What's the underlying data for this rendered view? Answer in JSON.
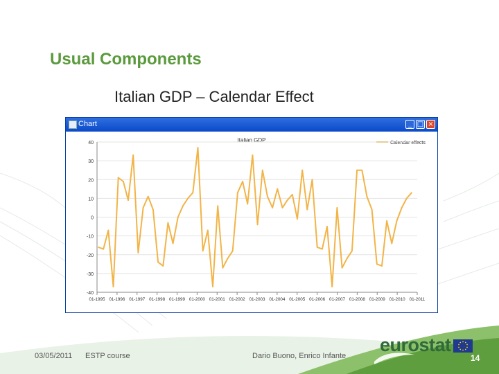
{
  "slide": {
    "title": "Usual Components",
    "subtitle": "Italian GDP – Calendar Effect"
  },
  "window": {
    "title": "Chart"
  },
  "footer": {
    "date": "03/05/2011",
    "course": "ESTP course",
    "authors": "Dario Buono, Enrico Infante",
    "page": "14",
    "logo": "eurostat"
  },
  "colors": {
    "title_green": "#5a9a3c",
    "series_line": "#f2b447",
    "window_border": "#0a3ea8"
  },
  "chart_data": {
    "type": "line",
    "title": "Italian GDP",
    "xlabel": "",
    "ylabel": "",
    "ylim": [
      -40,
      40
    ],
    "yticks": [
      -40,
      -30,
      -20,
      -10,
      0,
      10,
      20,
      30,
      40
    ],
    "ytick_labels": [
      "-40",
      "-30",
      "-20",
      "-10",
      "0",
      "10",
      "20",
      "30",
      "40"
    ],
    "xtick_labels": [
      "01-1995",
      "01-1996",
      "01-1997",
      "01-1998",
      "01-1999",
      "01-2000",
      "01-2001",
      "01-2002",
      "01-2003",
      "01-2004",
      "01-2005",
      "01-2006",
      "01-2007",
      "01-2008",
      "01-2009",
      "01-2010",
      "01-2011"
    ],
    "grid": true,
    "legend": "top-right",
    "series": [
      {
        "name": "Calendar effects",
        "color": "#f2b447",
        "x": [
          "1995-Q1",
          "1995-Q2",
          "1995-Q3",
          "1995-Q4",
          "1996-Q1",
          "1996-Q2",
          "1996-Q3",
          "1996-Q4",
          "1997-Q1",
          "1997-Q2",
          "1997-Q3",
          "1997-Q4",
          "1998-Q1",
          "1998-Q2",
          "1998-Q3",
          "1998-Q4",
          "1999-Q1",
          "1999-Q2",
          "1999-Q3",
          "1999-Q4",
          "2000-Q1",
          "2000-Q2",
          "2000-Q3",
          "2000-Q4",
          "2001-Q1",
          "2001-Q2",
          "2001-Q3",
          "2001-Q4",
          "2002-Q1",
          "2002-Q2",
          "2002-Q3",
          "2002-Q4",
          "2003-Q1",
          "2003-Q2",
          "2003-Q3",
          "2003-Q4",
          "2004-Q1",
          "2004-Q2",
          "2004-Q3",
          "2004-Q4",
          "2005-Q1",
          "2005-Q2",
          "2005-Q3",
          "2005-Q4",
          "2006-Q1",
          "2006-Q2",
          "2006-Q3",
          "2006-Q4",
          "2007-Q1",
          "2007-Q2",
          "2007-Q3",
          "2007-Q4",
          "2008-Q1",
          "2008-Q2",
          "2008-Q3",
          "2008-Q4",
          "2009-Q1",
          "2009-Q2",
          "2009-Q3",
          "2009-Q4",
          "2010-Q1",
          "2010-Q2",
          "2010-Q3",
          "2010-Q4"
        ],
        "values": [
          -16,
          -17,
          -7,
          -37,
          21,
          19,
          9,
          33,
          -19,
          5,
          11,
          4,
          -24,
          -26,
          -3,
          -14,
          0,
          6,
          10,
          13,
          37,
          -18,
          -7,
          -37,
          6,
          -27,
          -22,
          -18,
          13,
          19,
          7,
          33,
          -4,
          25,
          11,
          5,
          15,
          5,
          9,
          12,
          -1,
          25,
          4,
          20,
          -16,
          -17,
          -5,
          -37,
          5,
          -27,
          -22,
          -18,
          25,
          25,
          11,
          4,
          -25,
          -26,
          -2,
          -14,
          -2,
          5,
          10,
          13
        ]
      }
    ]
  }
}
